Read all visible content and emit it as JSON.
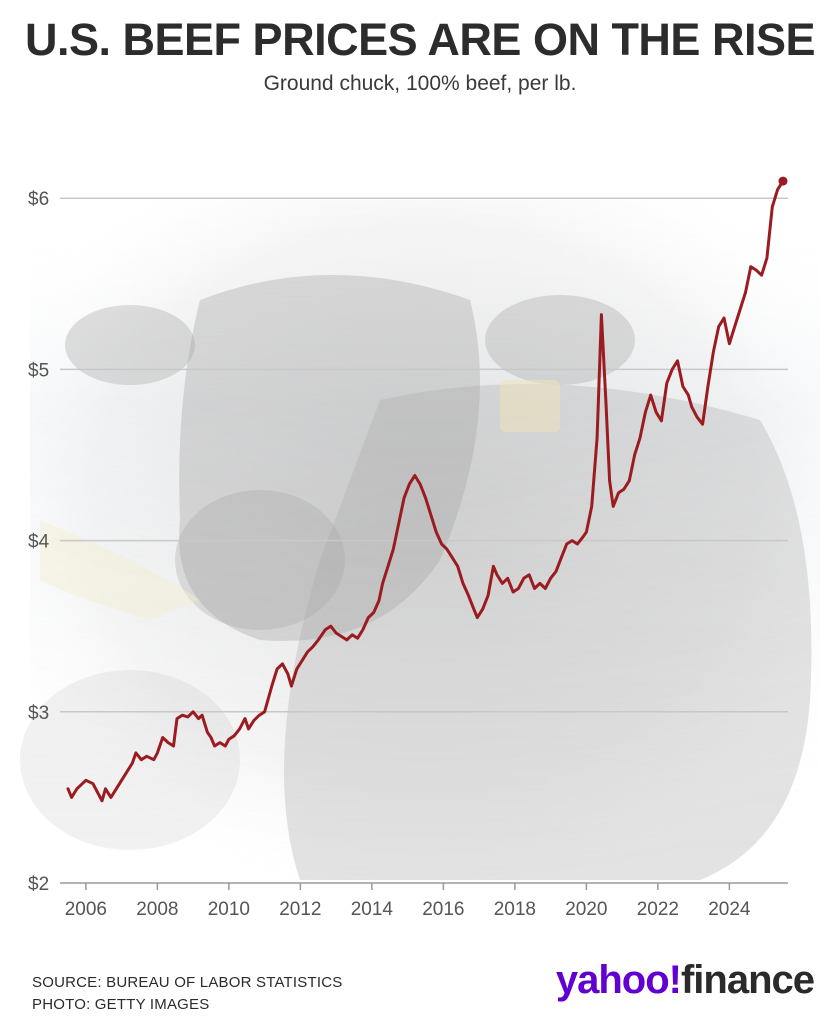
{
  "header": {
    "title": "U.S. BEEF PRICES ARE ON THE RISE",
    "subtitle": "Ground chuck, 100% beef, per lb."
  },
  "footer": {
    "source": "SOURCE: BUREAU OF LABOR STATISTICS",
    "photo": "PHOTO: GETTY IMAGES"
  },
  "logo": {
    "brand": "yahoo!",
    "product": "finance"
  },
  "background": {
    "image": "photo of a black cow (faded)"
  },
  "colors": {
    "line": "#9b1c20",
    "grid": "#c8c8c8",
    "logo_purple": "#6001d2"
  },
  "chart_data": {
    "type": "line",
    "title": "U.S. BEEF PRICES ARE ON THE RISE",
    "subtitle": "Ground chuck, 100% beef, per lb.",
    "xlabel": "",
    "ylabel": "",
    "xlim": [
      2005.5,
      2025.5
    ],
    "ylim": [
      2,
      6.1
    ],
    "x_ticks": [
      2006,
      2008,
      2010,
      2012,
      2014,
      2016,
      2018,
      2020,
      2022,
      2024
    ],
    "x_tick_labels": [
      "2006",
      "2008",
      "2010",
      "2012",
      "2014",
      "2016",
      "2018",
      "2020",
      "2022",
      "2024"
    ],
    "y_ticks": [
      2,
      3,
      4,
      5,
      6
    ],
    "y_tick_labels": [
      "$2",
      "$3",
      "$4",
      "$5",
      "$6"
    ],
    "grid": "horizontal",
    "series": [
      {
        "points": [
          [
            2005.5,
            2.55
          ],
          [
            2005.6,
            2.5
          ],
          [
            2005.75,
            2.55
          ],
          [
            2005.9,
            2.58
          ],
          [
            2006.0,
            2.6
          ],
          [
            2006.2,
            2.58
          ],
          [
            2006.35,
            2.52
          ],
          [
            2006.45,
            2.48
          ],
          [
            2006.55,
            2.55
          ],
          [
            2006.7,
            2.5
          ],
          [
            2006.85,
            2.55
          ],
          [
            2007.0,
            2.6
          ],
          [
            2007.15,
            2.65
          ],
          [
            2007.3,
            2.7
          ],
          [
            2007.4,
            2.76
          ],
          [
            2007.55,
            2.72
          ],
          [
            2007.7,
            2.74
          ],
          [
            2007.9,
            2.72
          ],
          [
            2008.0,
            2.76
          ],
          [
            2008.15,
            2.85
          ],
          [
            2008.3,
            2.82
          ],
          [
            2008.45,
            2.8
          ],
          [
            2008.55,
            2.96
          ],
          [
            2008.7,
            2.98
          ],
          [
            2008.85,
            2.97
          ],
          [
            2009.0,
            3.0
          ],
          [
            2009.15,
            2.96
          ],
          [
            2009.25,
            2.98
          ],
          [
            2009.4,
            2.88
          ],
          [
            2009.5,
            2.85
          ],
          [
            2009.6,
            2.8
          ],
          [
            2009.75,
            2.82
          ],
          [
            2009.9,
            2.8
          ],
          [
            2010.0,
            2.84
          ],
          [
            2010.15,
            2.86
          ],
          [
            2010.3,
            2.9
          ],
          [
            2010.45,
            2.96
          ],
          [
            2010.55,
            2.9
          ],
          [
            2010.7,
            2.95
          ],
          [
            2010.85,
            2.98
          ],
          [
            2011.0,
            3.0
          ],
          [
            2011.2,
            3.15
          ],
          [
            2011.35,
            3.25
          ],
          [
            2011.5,
            3.28
          ],
          [
            2011.65,
            3.22
          ],
          [
            2011.75,
            3.15
          ],
          [
            2011.9,
            3.25
          ],
          [
            2012.05,
            3.3
          ],
          [
            2012.2,
            3.35
          ],
          [
            2012.35,
            3.38
          ],
          [
            2012.5,
            3.42
          ],
          [
            2012.7,
            3.48
          ],
          [
            2012.85,
            3.5
          ],
          [
            2013.0,
            3.46
          ],
          [
            2013.15,
            3.44
          ],
          [
            2013.3,
            3.42
          ],
          [
            2013.45,
            3.45
          ],
          [
            2013.6,
            3.43
          ],
          [
            2013.75,
            3.48
          ],
          [
            2013.9,
            3.55
          ],
          [
            2014.05,
            3.58
          ],
          [
            2014.2,
            3.65
          ],
          [
            2014.3,
            3.75
          ],
          [
            2014.45,
            3.85
          ],
          [
            2014.6,
            3.95
          ],
          [
            2014.75,
            4.1
          ],
          [
            2014.9,
            4.25
          ],
          [
            2015.05,
            4.33
          ],
          [
            2015.2,
            4.38
          ],
          [
            2015.35,
            4.33
          ],
          [
            2015.5,
            4.25
          ],
          [
            2015.65,
            4.15
          ],
          [
            2015.8,
            4.05
          ],
          [
            2015.95,
            3.98
          ],
          [
            2016.1,
            3.95
          ],
          [
            2016.25,
            3.9
          ],
          [
            2016.4,
            3.85
          ],
          [
            2016.55,
            3.75
          ],
          [
            2016.7,
            3.68
          ],
          [
            2016.85,
            3.6
          ],
          [
            2016.95,
            3.55
          ],
          [
            2017.1,
            3.6
          ],
          [
            2017.25,
            3.68
          ],
          [
            2017.4,
            3.85
          ],
          [
            2017.5,
            3.8
          ],
          [
            2017.65,
            3.75
          ],
          [
            2017.8,
            3.78
          ],
          [
            2017.95,
            3.7
          ],
          [
            2018.1,
            3.72
          ],
          [
            2018.25,
            3.78
          ],
          [
            2018.4,
            3.8
          ],
          [
            2018.55,
            3.72
          ],
          [
            2018.7,
            3.75
          ],
          [
            2018.85,
            3.72
          ],
          [
            2019.0,
            3.78
          ],
          [
            2019.15,
            3.82
          ],
          [
            2019.3,
            3.9
          ],
          [
            2019.45,
            3.98
          ],
          [
            2019.6,
            4.0
          ],
          [
            2019.75,
            3.98
          ],
          [
            2019.9,
            4.02
          ],
          [
            2020.0,
            4.05
          ],
          [
            2020.15,
            4.2
          ],
          [
            2020.3,
            4.6
          ],
          [
            2020.42,
            5.32
          ],
          [
            2020.55,
            4.8
          ],
          [
            2020.65,
            4.35
          ],
          [
            2020.75,
            4.2
          ],
          [
            2020.9,
            4.28
          ],
          [
            2021.05,
            4.3
          ],
          [
            2021.2,
            4.35
          ],
          [
            2021.35,
            4.5
          ],
          [
            2021.5,
            4.6
          ],
          [
            2021.65,
            4.75
          ],
          [
            2021.8,
            4.85
          ],
          [
            2021.95,
            4.75
          ],
          [
            2022.1,
            4.7
          ],
          [
            2022.25,
            4.92
          ],
          [
            2022.4,
            5.0
          ],
          [
            2022.55,
            5.05
          ],
          [
            2022.7,
            4.9
          ],
          [
            2022.85,
            4.85
          ],
          [
            2022.95,
            4.78
          ],
          [
            2023.1,
            4.72
          ],
          [
            2023.25,
            4.68
          ],
          [
            2023.4,
            4.9
          ],
          [
            2023.55,
            5.1
          ],
          [
            2023.7,
            5.25
          ],
          [
            2023.85,
            5.3
          ],
          [
            2024.0,
            5.15
          ],
          [
            2024.15,
            5.25
          ],
          [
            2024.3,
            5.35
          ],
          [
            2024.45,
            5.45
          ],
          [
            2024.6,
            5.6
          ],
          [
            2024.75,
            5.58
          ],
          [
            2024.9,
            5.55
          ],
          [
            2025.05,
            5.65
          ],
          [
            2025.2,
            5.95
          ],
          [
            2025.35,
            6.05
          ],
          [
            2025.5,
            6.1
          ]
        ]
      }
    ]
  }
}
